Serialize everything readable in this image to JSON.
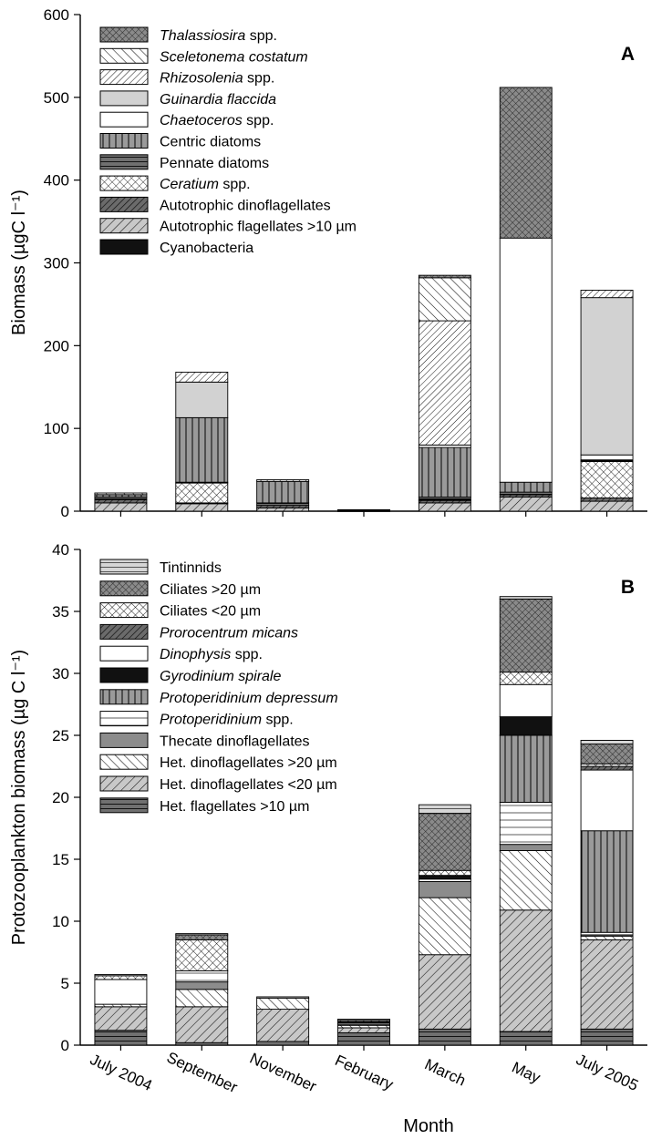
{
  "chart_data": [
    {
      "type": "bar",
      "panel_label": "A",
      "ylabel": "Biomass (µgC l⁻¹)",
      "ylim": [
        0,
        600
      ],
      "yticks": [
        "0",
        "100",
        "200",
        "300",
        "400",
        "500",
        "600"
      ],
      "categories": [
        "July 2004",
        "September",
        "November",
        "February",
        "March",
        "May",
        "July 2005"
      ],
      "series": [
        {
          "name": "Cyanobacteria",
          "name_parts": [
            {
              "t": "Cyanobacteria",
              "i": false
            }
          ],
          "pattern": "solid-black",
          "values": [
            0,
            0,
            0,
            0,
            0,
            0,
            0
          ]
        },
        {
          "name": "Autotrophic flagellates >10 µm",
          "name_parts": [
            {
              "t": "Autotrophic flagellates >10 µm",
              "i": false
            }
          ],
          "pattern": "gray-diag",
          "values": [
            10,
            9,
            4,
            0.5,
            10,
            17,
            12
          ]
        },
        {
          "name": "Autotrophic dinoflagellates",
          "name_parts": [
            {
              "t": "Autotrophic dinoflagellates",
              "i": false
            }
          ],
          "pattern": "dark-diag",
          "values": [
            4,
            1,
            3,
            0.3,
            3,
            3,
            4
          ]
        },
        {
          "name": "Ceratium spp.",
          "name_parts": [
            {
              "t": "Ceratium",
              "i": true
            },
            {
              "t": " spp.",
              "i": false
            }
          ],
          "pattern": "crosshatch",
          "values": [
            0,
            24,
            0,
            0,
            1,
            0,
            44
          ]
        },
        {
          "name": "Pennate diatoms",
          "name_parts": [
            {
              "t": "Pennate diatoms",
              "i": false
            }
          ],
          "pattern": "dark-horiz",
          "values": [
            3,
            1,
            3,
            0.5,
            3,
            3,
            1
          ]
        },
        {
          "name": "Centric diatoms",
          "name_parts": [
            {
              "t": "Centric diatoms",
              "i": false
            }
          ],
          "pattern": "gray-vert",
          "values": [
            3,
            78,
            26,
            0.5,
            60,
            12,
            1
          ]
        },
        {
          "name": "Chaetoceros spp.",
          "name_parts": [
            {
              "t": "Chaetoceros",
              "i": true
            },
            {
              "t": " spp.",
              "i": false
            }
          ],
          "pattern": "white",
          "values": [
            0,
            0,
            0,
            0,
            3,
            295,
            6
          ]
        },
        {
          "name": "Guinardia flaccida",
          "name_parts": [
            {
              "t": "Guinardia flaccida",
              "i": true
            }
          ],
          "pattern": "light-gray",
          "values": [
            0,
            43,
            0,
            0,
            0,
            0,
            190
          ]
        },
        {
          "name": "Rhizosolenia spp.",
          "name_parts": [
            {
              "t": "Rhizosolenia",
              "i": true
            },
            {
              "t": " spp.",
              "i": false
            }
          ],
          "pattern": "fine-diag",
          "values": [
            0,
            12,
            2,
            0,
            150,
            0,
            9
          ]
        },
        {
          "name": "Sceletonema costatum",
          "name_parts": [
            {
              "t": "Sceletonema costatum",
              "i": true
            }
          ],
          "pattern": "back-diag",
          "values": [
            2,
            0,
            0,
            0,
            52,
            0,
            0
          ]
        },
        {
          "name": "Thalassiosira spp.",
          "name_parts": [
            {
              "t": "Thalassiosira",
              "i": true
            },
            {
              "t": " spp.",
              "i": false
            }
          ],
          "pattern": "gray-cross",
          "values": [
            0,
            0,
            0,
            0,
            3,
            182,
            0
          ]
        }
      ]
    },
    {
      "type": "bar",
      "panel_label": "B",
      "ylabel": "Protozooplankton biomass (µg C l⁻¹)",
      "xlabel": "Month",
      "ylim": [
        0,
        40
      ],
      "yticks": [
        "0",
        "5",
        "10",
        "15",
        "20",
        "25",
        "30",
        "35",
        "40"
      ],
      "categories": [
        "July 2004",
        "September",
        "November",
        "February",
        "March",
        "May",
        "July 2005"
      ],
      "series": [
        {
          "name": "Het. flagellates >10 µm",
          "name_parts": [
            {
              "t": "Het. flagellates >10 µm",
              "i": false
            }
          ],
          "pattern": "dark-horiz",
          "values": [
            1.2,
            0.2,
            0.3,
            1.0,
            1.3,
            1.1,
            1.3
          ]
        },
        {
          "name": "Het. dinoflagellates <20 µm",
          "name_parts": [
            {
              "t": "Het. dinoflagellates <20 µm",
              "i": false
            }
          ],
          "pattern": "gray-diag",
          "values": [
            1.9,
            2.9,
            2.6,
            0.4,
            6.0,
            9.8,
            7.2
          ]
        },
        {
          "name": "Het. dinoflagellates >20 µm",
          "name_parts": [
            {
              "t": "Het. dinoflagellates >20 µm",
              "i": false
            }
          ],
          "pattern": "back-diag",
          "values": [
            0.2,
            1.4,
            0.9,
            0.2,
            4.6,
            4.8,
            0.3
          ]
        },
        {
          "name": "Thecate dinoflagellates",
          "name_parts": [
            {
              "t": "Thecate dinoflagellates",
              "i": false
            }
          ],
          "pattern": "mid-gray",
          "values": [
            0,
            0.6,
            0,
            0.1,
            1.3,
            0.5,
            0.1
          ]
        },
        {
          "name": "Protoperidinium spp.",
          "name_parts": [
            {
              "t": "Protoperidinium",
              "i": true
            },
            {
              "t": " spp.",
              "i": false
            }
          ],
          "pattern": "white-lines",
          "values": [
            0,
            0.9,
            0,
            0.1,
            0.2,
            3.4,
            0.2
          ]
        },
        {
          "name": "Protoperidinium depressum",
          "name_parts": [
            {
              "t": "Protoperidinium depressum",
              "i": true
            }
          ],
          "pattern": "gray-vert",
          "values": [
            0,
            0,
            0,
            0,
            0,
            5.4,
            8.2
          ]
        },
        {
          "name": "Gyrodinium spirale",
          "name_parts": [
            {
              "t": "Gyrodinium spirale",
              "i": true
            }
          ],
          "pattern": "solid-black",
          "values": [
            0,
            0,
            0,
            0.1,
            0.3,
            1.5,
            0
          ]
        },
        {
          "name": "Dinophysis spp.",
          "name_parts": [
            {
              "t": "Dinophysis",
              "i": true
            },
            {
              "t": " spp.",
              "i": false
            }
          ],
          "pattern": "white",
          "values": [
            2.0,
            0,
            0,
            0,
            0,
            2.6,
            4.9
          ]
        },
        {
          "name": "Prorocentrum micans",
          "name_parts": [
            {
              "t": "Prorocentrum micans",
              "i": true
            }
          ],
          "pattern": "dark-diag",
          "values": [
            0,
            0,
            0,
            0,
            0,
            0,
            0.3
          ]
        },
        {
          "name": "Ciliates <20 µm",
          "name_parts": [
            {
              "t": "Ciliates <20 µm",
              "i": false
            }
          ],
          "pattern": "crosshatch",
          "values": [
            0.3,
            2.5,
            0,
            0.1,
            0.4,
            1.0,
            0.2
          ]
        },
        {
          "name": "Ciliates >20 µm",
          "name_parts": [
            {
              "t": "Ciliates >20 µm",
              "i": false
            }
          ],
          "pattern": "gray-cross",
          "values": [
            0,
            0.4,
            0,
            0,
            4.6,
            5.9,
            1.6
          ]
        },
        {
          "name": "Tintinnids",
          "name_parts": [
            {
              "t": "Tintinnids",
              "i": false
            }
          ],
          "pattern": "light-horiz",
          "values": [
            0.1,
            0.1,
            0.1,
            0.1,
            0.7,
            0.2,
            0.3
          ]
        }
      ]
    }
  ]
}
